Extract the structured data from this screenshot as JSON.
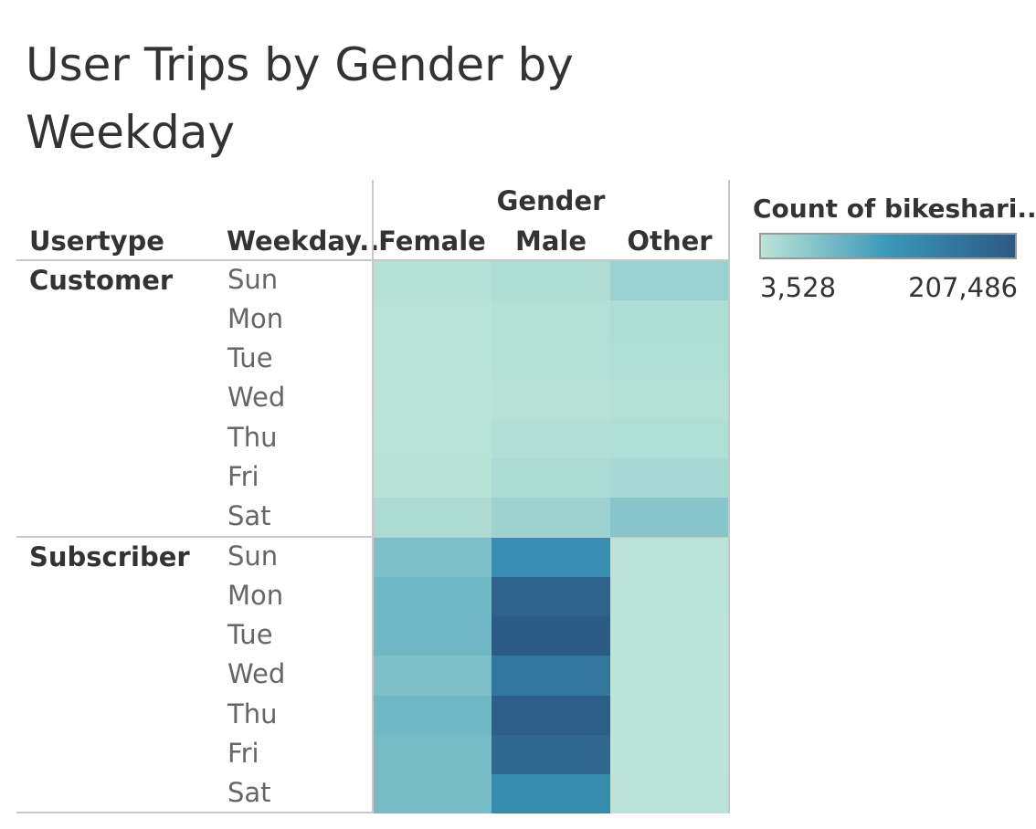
{
  "title": "User Trips by Gender by Weekday",
  "headers": {
    "usertype": "Usertype",
    "weekday": "Weekday..",
    "gender": "Gender"
  },
  "legend": {
    "title": "Count of bikeshari..",
    "min_label": "3,528",
    "max_label": "207,486",
    "color_low": "#bce4d8",
    "color_mid": "#3a98b8",
    "color_high": "#2c5985"
  },
  "chart_data": {
    "type": "heatmap",
    "measure": "Count of bikeshari..",
    "columns": [
      "Female",
      "Male",
      "Other"
    ],
    "column_group_label": "Gender",
    "value_range": [
      3528,
      207486
    ],
    "groups": [
      {
        "name": "Customer",
        "rows": [
          {
            "day": "Sun",
            "values": [
              8000,
              14000,
              30000
            ]
          },
          {
            "day": "Mon",
            "values": [
              5000,
              9000,
              14000
            ]
          },
          {
            "day": "Tue",
            "values": [
              5000,
              9000,
              13000
            ]
          },
          {
            "day": "Wed",
            "values": [
              4500,
              7000,
              9000
            ]
          },
          {
            "day": "Thu",
            "values": [
              5500,
              11000,
              13000
            ]
          },
          {
            "day": "Fri",
            "values": [
              6000,
              15000,
              19000
            ]
          },
          {
            "day": "Sat",
            "values": [
              15000,
              28000,
              45000
            ]
          }
        ]
      },
      {
        "name": "Subscriber",
        "rows": [
          {
            "day": "Sun",
            "values": [
              52000,
              120000,
              4500
            ]
          },
          {
            "day": "Mon",
            "values": [
              62000,
              195000,
              4000
            ]
          },
          {
            "day": "Tue",
            "values": [
              62000,
              205000,
              3600
            ]
          },
          {
            "day": "Wed",
            "values": [
              52000,
              160000,
              3800
            ]
          },
          {
            "day": "Thu",
            "values": [
              62000,
              200000,
              3700
            ]
          },
          {
            "day": "Fri",
            "values": [
              58000,
              185000,
              3800
            ]
          },
          {
            "day": "Sat",
            "values": [
              58000,
              125000,
              4500
            ]
          }
        ]
      }
    ]
  }
}
